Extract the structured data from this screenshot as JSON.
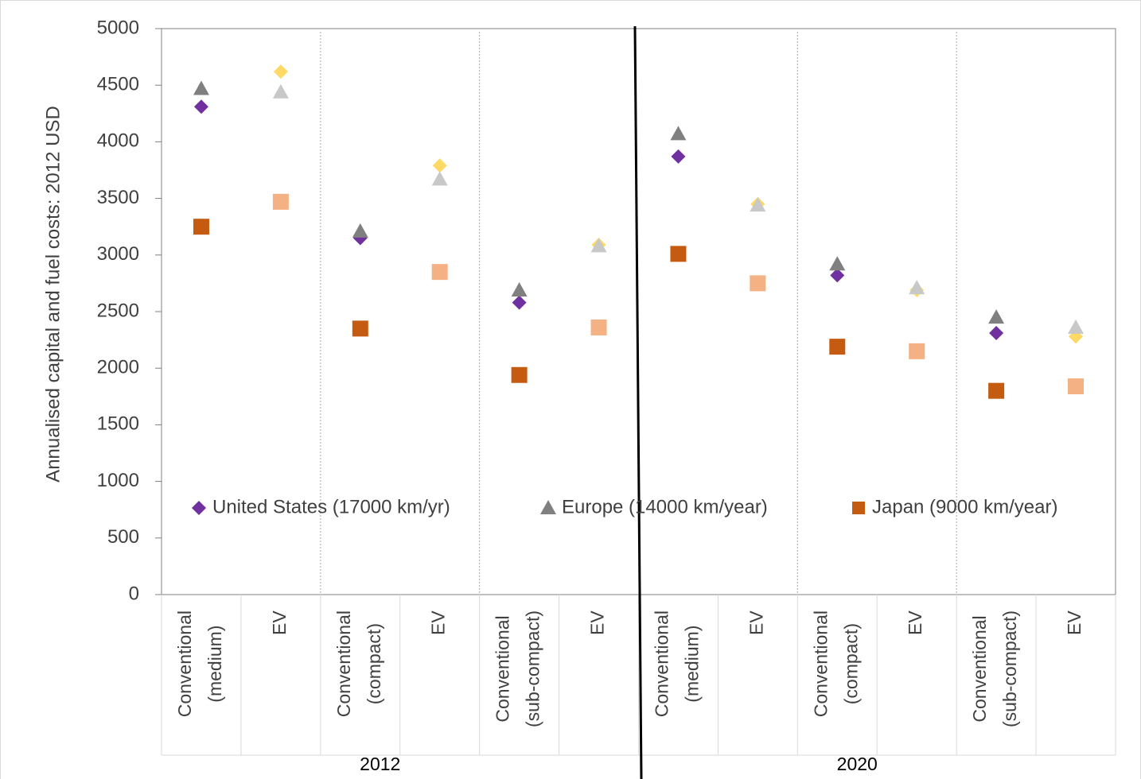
{
  "chart_data": {
    "type": "scatter",
    "y_label": "Annualised capital and fuel costs: 2012 USD",
    "categories": [
      "Conventional (medium)",
      "EV",
      "Conventional (compact)",
      "EV",
      "Conventional (sub-compact)",
      "EV",
      "Conventional (medium)",
      "EV",
      "Conventional (compact)",
      "EV",
      "Conventional (sub-compact)",
      "EV"
    ],
    "group_labels": [
      "2012",
      "2020"
    ],
    "ylim": [
      0,
      5000
    ],
    "yticks": [
      0,
      500,
      1000,
      1500,
      2000,
      2500,
      3000,
      3500,
      4000,
      4500,
      5000
    ],
    "legend": "inside-bottom",
    "series": [
      {
        "name": "United States (17000 km/yr)",
        "marker": "diamond",
        "color": "#7030a0",
        "colors": [
          "#7030a0",
          "#ffd966",
          "#7030a0",
          "#ffd966",
          "#7030a0",
          "#ffd966",
          "#7030a0",
          "#ffd966",
          "#7030a0",
          "#ffd966",
          "#7030a0",
          "#ffd966"
        ],
        "values": [
          4310,
          4620,
          3150,
          3790,
          2580,
          3090,
          3870,
          3450,
          2820,
          2690,
          2310,
          2280
        ]
      },
      {
        "name": "Europe (14000 km/year)",
        "marker": "triangle",
        "color": "#808080",
        "colors": [
          "#808080",
          "#c8c8c8",
          "#808080",
          "#c8c8c8",
          "#808080",
          "#c8c8c8",
          "#808080",
          "#c8c8c8",
          "#808080",
          "#c8c8c8",
          "#808080",
          "#c8c8c8"
        ],
        "values": [
          4470,
          4440,
          3210,
          3670,
          2690,
          3080,
          4070,
          3440,
          2920,
          2710,
          2450,
          2360
        ]
      },
      {
        "name": "Japan (9000 km/year)",
        "marker": "square",
        "color": "#c55a11",
        "colors": [
          "#c55a11",
          "#f4b183",
          "#c55a11",
          "#f4b183",
          "#c55a11",
          "#f4b183",
          "#c55a11",
          "#f4b183",
          "#c55a11",
          "#f4b183",
          "#c55a11",
          "#f4b183"
        ],
        "values": [
          3250,
          3470,
          2350,
          2850,
          1940,
          2360,
          3010,
          2750,
          2190,
          2150,
          1800,
          1840
        ]
      }
    ]
  }
}
